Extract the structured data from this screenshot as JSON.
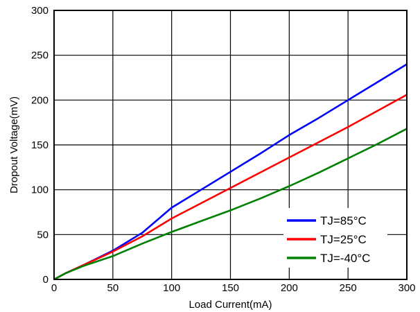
{
  "chart_data": {
    "type": "line",
    "title": "",
    "xlabel": "Load Current(mA)",
    "ylabel": "Dropout Voltage(mV)",
    "xlim": [
      0,
      300
    ],
    "ylim": [
      0,
      300
    ],
    "xticks": [
      0,
      50,
      100,
      150,
      200,
      250,
      300
    ],
    "yticks": [
      0,
      50,
      100,
      150,
      200,
      250,
      300
    ],
    "grid": true,
    "legend_position": "bottom-right",
    "series": [
      {
        "name": "TJ=85°C",
        "color": "#0000ff",
        "x": [
          0,
          10,
          25,
          50,
          75,
          100,
          125,
          150,
          175,
          200,
          225,
          250,
          275,
          300
        ],
        "y": [
          0,
          7,
          16,
          32,
          52,
          80,
          100,
          120,
          140,
          161,
          180,
          200,
          220,
          240
        ]
      },
      {
        "name": "TJ=25°C",
        "color": "#ff0000",
        "x": [
          0,
          10,
          25,
          50,
          75,
          100,
          125,
          150,
          175,
          200,
          225,
          250,
          275,
          300
        ],
        "y": [
          0,
          7,
          16,
          31,
          48,
          68,
          85,
          102,
          119,
          136,
          153,
          170,
          188,
          206
        ]
      },
      {
        "name": "TJ=-40°C",
        "color": "#008000",
        "x": [
          0,
          10,
          25,
          50,
          75,
          100,
          125,
          150,
          175,
          200,
          225,
          250,
          275,
          300
        ],
        "y": [
          0,
          7,
          15,
          26,
          40,
          53,
          65,
          77,
          90,
          104,
          119,
          135,
          151,
          168
        ]
      }
    ]
  }
}
